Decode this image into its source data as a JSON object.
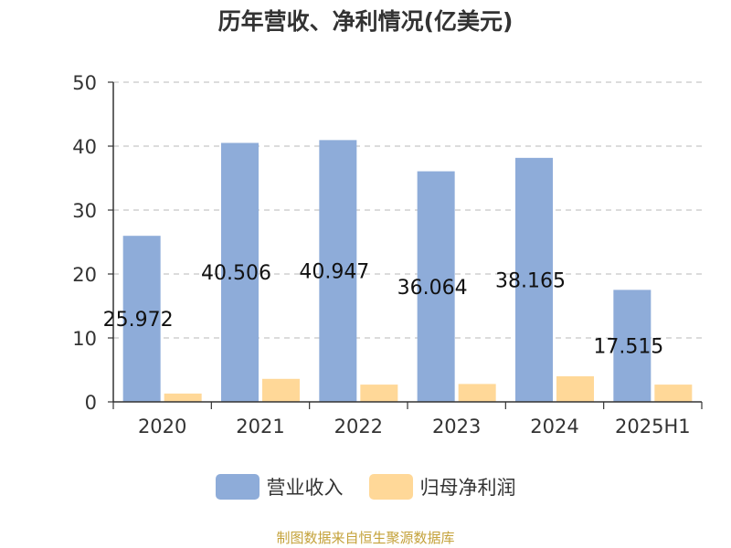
{
  "chart_data": {
    "type": "bar",
    "title": "历年营收、净利情况(亿美元)",
    "categories": [
      "2020",
      "2021",
      "2022",
      "2023",
      "2024",
      "2025H1"
    ],
    "series": [
      {
        "name": "营业收入",
        "color": "#8eacd9",
        "values": [
          25.972,
          40.506,
          40.947,
          36.064,
          38.165,
          17.515
        ],
        "labels": [
          "25.972",
          "40.506",
          "40.947",
          "36.064",
          "38.165",
          "17.515"
        ]
      },
      {
        "name": "归母净利润",
        "color": "#ffd898",
        "values": [
          1.3,
          3.6,
          2.7,
          2.8,
          4.0,
          2.7
        ]
      }
    ],
    "ylim": [
      0,
      50
    ],
    "yticks": [
      "0",
      "10",
      "20",
      "30",
      "40",
      "50"
    ],
    "grid": true,
    "legend_position": "bottom"
  },
  "footer": {
    "source": "制图数据来自恒生聚源数据库"
  }
}
